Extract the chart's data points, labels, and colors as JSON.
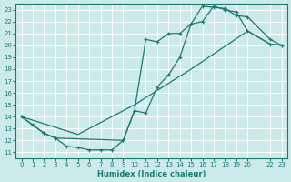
{
  "xlabel": "Humidex (Indice chaleur)",
  "bg_color": "#cdeaea",
  "grid_color": "#b8d8d8",
  "line_color": "#1a7a6e",
  "xlim": [
    -0.5,
    23.5
  ],
  "ylim": [
    10.5,
    23.5
  ],
  "xticks": [
    0,
    1,
    2,
    3,
    4,
    5,
    6,
    7,
    8,
    9,
    10,
    11,
    12,
    13,
    14,
    15,
    16,
    17,
    18,
    19,
    20,
    22,
    23
  ],
  "yticks": [
    11,
    12,
    13,
    14,
    15,
    16,
    17,
    18,
    19,
    20,
    21,
    22,
    23
  ],
  "line1_x": [
    0,
    1,
    2,
    3,
    4,
    5,
    6,
    7,
    8,
    9,
    10,
    11,
    12,
    13,
    14,
    15,
    16,
    17,
    18,
    19,
    20,
    22,
    23
  ],
  "line1_y": [
    14,
    13.3,
    12.6,
    12.2,
    11.5,
    11.4,
    11.2,
    11.2,
    11.2,
    12.0,
    14.5,
    14.3,
    16.5,
    17.5,
    19.0,
    21.8,
    22.0,
    23.3,
    23.0,
    22.8,
    21.2,
    20.1,
    20.0
  ],
  "line2_x": [
    0,
    1,
    2,
    3,
    9,
    10,
    11,
    12,
    13,
    14,
    15,
    16,
    17,
    18,
    19,
    20,
    22,
    23
  ],
  "line2_y": [
    14,
    13.3,
    12.6,
    12.2,
    12.0,
    14.5,
    20.5,
    20.3,
    21.0,
    21.0,
    21.8,
    23.3,
    23.2,
    23.1,
    22.5,
    22.4,
    20.5,
    20.0
  ],
  "line3_x": [
    0,
    5,
    10,
    15,
    20,
    22,
    23
  ],
  "line3_y": [
    14,
    12.5,
    15.0,
    18.0,
    21.2,
    20.1,
    20.0
  ]
}
